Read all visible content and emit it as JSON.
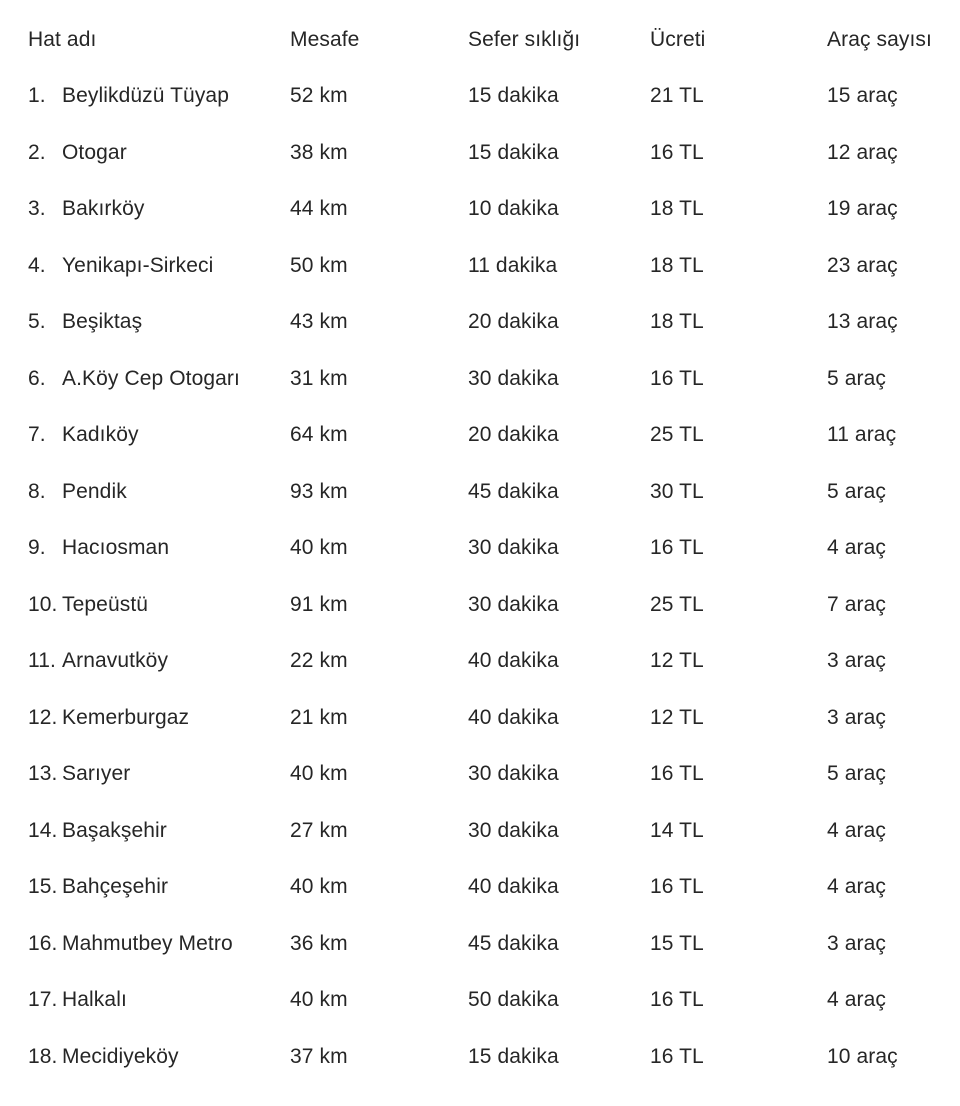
{
  "colors": {
    "text": "#262626",
    "background": "#ffffff"
  },
  "table": {
    "columns": [
      {
        "key": "name",
        "label": "Hat adı"
      },
      {
        "key": "distance",
        "label": "Mesafe"
      },
      {
        "key": "frequency",
        "label": "Sefer sıklığı"
      },
      {
        "key": "fare",
        "label": "Ücreti"
      },
      {
        "key": "vehicles",
        "label": "Araç sayısı"
      }
    ],
    "rows": [
      {
        "no": "1.",
        "name": "Beylikdüzü Tüyap",
        "distance": "52 km",
        "frequency": "15 dakika",
        "fare": "21 TL",
        "vehicles": "15 araç"
      },
      {
        "no": "2.",
        "name": "Otogar",
        "distance": "38 km",
        "frequency": "15 dakika",
        "fare": "16 TL",
        "vehicles": "12 araç"
      },
      {
        "no": "3.",
        "name": "Bakırköy",
        "distance": "44 km",
        "frequency": "10 dakika",
        "fare": "18 TL",
        "vehicles": "19 araç"
      },
      {
        "no": "4.",
        "name": "Yenikapı-Sirkeci",
        "distance": "50 km",
        "frequency": "11 dakika",
        "fare": "18 TL",
        "vehicles": "23 araç"
      },
      {
        "no": "5.",
        "name": "Beşiktaş",
        "distance": "43 km",
        "frequency": "20 dakika",
        "fare": "18 TL",
        "vehicles": "13 araç"
      },
      {
        "no": "6.",
        "name": "A.Köy Cep Otogarı",
        "distance": "31 km",
        "frequency": "30 dakika",
        "fare": "16 TL",
        "vehicles": "5 araç"
      },
      {
        "no": "7.",
        "name": "Kadıköy",
        "distance": "64 km",
        "frequency": "20 dakika",
        "fare": "25 TL",
        "vehicles": "11 araç"
      },
      {
        "no": "8.",
        "name": "Pendik",
        "distance": "93 km",
        "frequency": "45 dakika",
        "fare": "30 TL",
        "vehicles": "5 araç"
      },
      {
        "no": "9.",
        "name": "Hacıosman",
        "distance": "40 km",
        "frequency": "30 dakika",
        "fare": "16 TL",
        "vehicles": "4 araç"
      },
      {
        "no": "10.",
        "name": "Tepeüstü",
        "distance": "91 km",
        "frequency": "30 dakika",
        "fare": "25 TL",
        "vehicles": "7 araç"
      },
      {
        "no": "11.",
        "name": "Arnavutköy",
        "distance": "22 km",
        "frequency": "40 dakika",
        "fare": "12 TL",
        "vehicles": "3 araç"
      },
      {
        "no": "12.",
        "name": "Kemerburgaz",
        "distance": "21 km",
        "frequency": "40 dakika",
        "fare": "12 TL",
        "vehicles": "3 araç"
      },
      {
        "no": "13.",
        "name": "Sarıyer",
        "distance": "40 km",
        "frequency": "30 dakika",
        "fare": "16 TL",
        "vehicles": "5 araç"
      },
      {
        "no": "14.",
        "name": "Başakşehir",
        "distance": "27 km",
        "frequency": "30 dakika",
        "fare": "14 TL",
        "vehicles": "4 araç"
      },
      {
        "no": "15.",
        "name": "Bahçeşehir",
        "distance": "40 km",
        "frequency": "40 dakika",
        "fare": "16 TL",
        "vehicles": "4 araç"
      },
      {
        "no": "16.",
        "name": "Mahmutbey Metro",
        "distance": "36 km",
        "frequency": "45 dakika",
        "fare": "15 TL",
        "vehicles": "3 araç"
      },
      {
        "no": "17.",
        "name": "Halkalı",
        "distance": "40 km",
        "frequency": "50 dakika",
        "fare": "16 TL",
        "vehicles": "4 araç"
      },
      {
        "no": "18.",
        "name": "Mecidiyeköy",
        "distance": "37 km",
        "frequency": "15 dakika",
        "fare": "16 TL",
        "vehicles": "10 araç"
      }
    ]
  }
}
